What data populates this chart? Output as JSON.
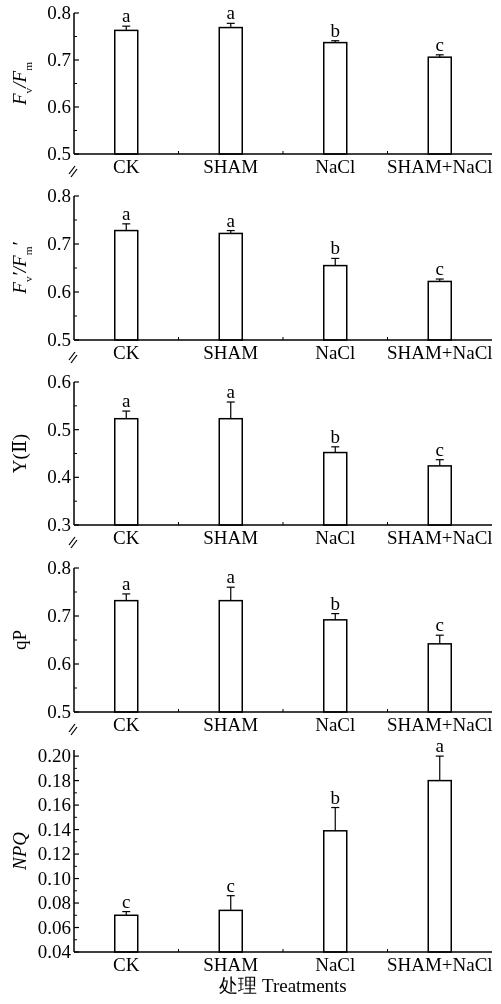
{
  "chart_data": [
    {
      "type": "bar",
      "ylabel": "F$_{v}$/F$_{m}$",
      "categories": [
        "CK",
        "SHAM",
        "NaCl",
        "SHAM+NaCl"
      ],
      "values": [
        0.763,
        0.769,
        0.737,
        0.706
      ],
      "errors": [
        0.009,
        0.009,
        0.004,
        0.005
      ],
      "color": "#ffffff",
      "ylim": [
        0.5,
        0.8
      ],
      "yticks": [
        0.5,
        0.6,
        0.7,
        0.8
      ],
      "annotations": [
        {
          "text": "a",
          "x": "CK",
          "y": 0.772
        },
        {
          "text": "a",
          "x": "SHAM",
          "y": 0.778
        },
        {
          "text": "b",
          "x": "NaCl",
          "y": 0.741
        },
        {
          "text": "c",
          "x": "SHAM+NaCl",
          "y": 0.711
        }
      ]
    },
    {
      "type": "bar",
      "ylabel": "F$_{v}$′/F$_{m}$′",
      "categories": [
        "CK",
        "SHAM",
        "NaCl",
        "SHAM+NaCl"
      ],
      "values": [
        0.728,
        0.722,
        0.655,
        0.622
      ],
      "errors": [
        0.014,
        0.006,
        0.015,
        0.005
      ],
      "color": "#ffffff",
      "ylim": [
        0.5,
        0.8
      ],
      "yticks": [
        0.5,
        0.6,
        0.7,
        0.8
      ],
      "annotations": [
        {
          "text": "a",
          "x": "CK",
          "y": 0.742
        },
        {
          "text": "a",
          "x": "SHAM",
          "y": 0.728
        },
        {
          "text": "b",
          "x": "NaCl",
          "y": 0.67
        },
        {
          "text": "c",
          "x": "SHAM+NaCl",
          "y": 0.627
        }
      ]
    },
    {
      "type": "bar",
      "ylabel": "Y(Ⅱ)",
      "categories": [
        "CK",
        "SHAM",
        "NaCl",
        "SHAM+NaCl"
      ],
      "values": [
        0.523,
        0.523,
        0.452,
        0.424
      ],
      "errors": [
        0.016,
        0.035,
        0.012,
        0.013
      ],
      "color": "#ffffff",
      "ylim": [
        0.3,
        0.6
      ],
      "yticks": [
        0.3,
        0.4,
        0.5,
        0.6
      ],
      "annotations": [
        {
          "text": "a",
          "x": "CK",
          "y": 0.539
        },
        {
          "text": "a",
          "x": "SHAM",
          "y": 0.558
        },
        {
          "text": "b",
          "x": "NaCl",
          "y": 0.464
        },
        {
          "text": "c",
          "x": "SHAM+NaCl",
          "y": 0.437
        }
      ]
    },
    {
      "type": "bar",
      "ylabel": "qP",
      "categories": [
        "CK",
        "SHAM",
        "NaCl",
        "SHAM+NaCl"
      ],
      "values": [
        0.732,
        0.732,
        0.692,
        0.642
      ],
      "errors": [
        0.014,
        0.028,
        0.013,
        0.018
      ],
      "color": "#ffffff",
      "ylim": [
        0.5,
        0.8
      ],
      "yticks": [
        0.5,
        0.6,
        0.7,
        0.8
      ],
      "annotations": [
        {
          "text": "a",
          "x": "CK",
          "y": 0.746
        },
        {
          "text": "a",
          "x": "SHAM",
          "y": 0.76
        },
        {
          "text": "b",
          "x": "NaCl",
          "y": 0.705
        },
        {
          "text": "c",
          "x": "SHAM+NaCl",
          "y": 0.66
        }
      ]
    },
    {
      "type": "bar",
      "ylabel": "NPQ",
      "xlabel": "处理 Treatments",
      "categories": [
        "CK",
        "SHAM",
        "NaCl",
        "SHAM+NaCl"
      ],
      "values": [
        0.07,
        0.074,
        0.139,
        0.18
      ],
      "errors": [
        0.003,
        0.012,
        0.019,
        0.02
      ],
      "color": "#ffffff",
      "ylim": [
        0.04,
        0.205
      ],
      "yticks": [
        0.04,
        0.06,
        0.08,
        {
          "value": 0.1,
          "label": "0.10"
        },
        0.12,
        0.14,
        0.16,
        0.18,
        {
          "value": 0.2,
          "label": "0.20"
        }
      ],
      "annotations": [
        {
          "text": "c",
          "x": "CK",
          "y": 0.073
        },
        {
          "text": "c",
          "x": "SHAM",
          "y": 0.086
        },
        {
          "text": "b",
          "x": "NaCl",
          "y": 0.158
        },
        {
          "text": "a",
          "x": "SHAM+NaCl",
          "y": 0.2
        }
      ]
    }
  ]
}
